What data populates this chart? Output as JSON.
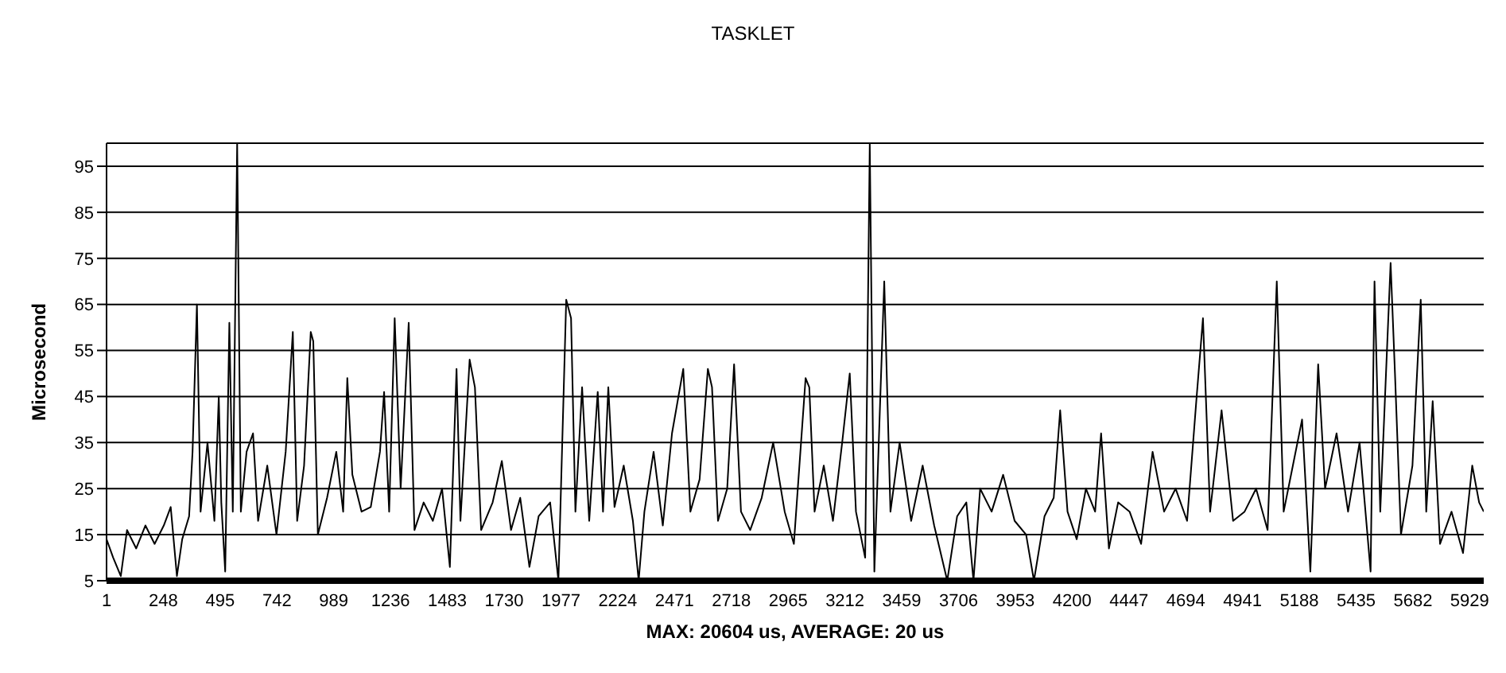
{
  "chart_data": {
    "type": "line",
    "title": "TASKLET",
    "xlabel": "MAX: 20604 us, AVERAGE: 20 us",
    "ylabel": "Microsecond",
    "x": [
      1,
      30,
      63,
      90,
      130,
      170,
      210,
      250,
      280,
      307,
      330,
      360,
      375,
      394,
      410,
      440,
      470,
      489,
      500,
      517,
      535,
      550,
      569,
      585,
      610,
      638,
      660,
      700,
      740,
      780,
      811,
      830,
      860,
      889,
      900,
      920,
      960,
      1000,
      1030,
      1048,
      1070,
      1110,
      1150,
      1190,
      1208,
      1230,
      1254,
      1280,
      1315,
      1340,
      1380,
      1420,
      1460,
      1494,
      1523,
      1540,
      1580,
      1603,
      1630,
      1680,
      1720,
      1760,
      1800,
      1840,
      1880,
      1930,
      1966,
      2000,
      2021,
      2040,
      2069,
      2100,
      2137,
      2160,
      2183,
      2210,
      2250,
      2290,
      2315,
      2340,
      2380,
      2420,
      2460,
      2509,
      2540,
      2580,
      2616,
      2634,
      2660,
      2700,
      2730,
      2760,
      2800,
      2850,
      2900,
      2950,
      2990,
      3041,
      3057,
      3080,
      3120,
      3160,
      3200,
      3233,
      3260,
      3300,
      3320,
      3340,
      3383,
      3410,
      3450,
      3500,
      3550,
      3600,
      3657,
      3700,
      3740,
      3771,
      3800,
      3850,
      3900,
      3950,
      4000,
      4034,
      4080,
      4120,
      4148,
      4180,
      4220,
      4260,
      4300,
      4326,
      4360,
      4400,
      4450,
      4500,
      4550,
      4600,
      4650,
      4700,
      4740,
      4769,
      4800,
      4850,
      4900,
      4950,
      5000,
      5050,
      5090,
      5120,
      5160,
      5200,
      5236,
      5270,
      5300,
      5350,
      5400,
      5450,
      5498,
      5515,
      5540,
      5585,
      5604,
      5630,
      5680,
      5716,
      5740,
      5768,
      5800,
      5850,
      5900,
      5940,
      5970,
      5990
    ],
    "series": [
      {
        "color": "#000000",
        "values": [
          14,
          10,
          6,
          16,
          12,
          17,
          13,
          17,
          21,
          6,
          14,
          19,
          33,
          65,
          20,
          35,
          18,
          45,
          22,
          7,
          61,
          20,
          100,
          20,
          33,
          37,
          18,
          30,
          15,
          33,
          59,
          18,
          30,
          59,
          57,
          15,
          23,
          33,
          20,
          49,
          28,
          20,
          21,
          33,
          46,
          20,
          62,
          25,
          61,
          16,
          22,
          18,
          25,
          8,
          51,
          18,
          53,
          47,
          16,
          22,
          31,
          16,
          23,
          8,
          19,
          22,
          5,
          66,
          62,
          20,
          47,
          18,
          46,
          20,
          47,
          21,
          30,
          18,
          5,
          20,
          33,
          17,
          37,
          51,
          20,
          27,
          51,
          47,
          18,
          25,
          52,
          20,
          16,
          23,
          35,
          20,
          13,
          49,
          47,
          20,
          30,
          18,
          35,
          50,
          20,
          10,
          100,
          7,
          70,
          20,
          35,
          18,
          30,
          17,
          5,
          19,
          22,
          5,
          25,
          20,
          28,
          18,
          15,
          5,
          19,
          23,
          42,
          20,
          14,
          25,
          20,
          37,
          12,
          22,
          20,
          13,
          33,
          20,
          25,
          18,
          44,
          62,
          20,
          42,
          18,
          20,
          25,
          16,
          70,
          20,
          30,
          40,
          7,
          52,
          25,
          37,
          20,
          35,
          7,
          70,
          20,
          74,
          50,
          15,
          30,
          66,
          20,
          44,
          13,
          20,
          11,
          30,
          22,
          20
        ]
      }
    ],
    "xlim": [
      1,
      5990
    ],
    "xticks": [
      1,
      248,
      495,
      742,
      989,
      1236,
      1483,
      1730,
      1977,
      2224,
      2471,
      2718,
      2965,
      3212,
      3459,
      3706,
      3953,
      4200,
      4447,
      4694,
      4941,
      5188,
      5435,
      5682,
      5929
    ],
    "ylim": [
      5,
      100
    ],
    "yticks": [
      5,
      15,
      25,
      35,
      45,
      55,
      65,
      75,
      85,
      95
    ],
    "grid": "y",
    "legend": false,
    "marker": "none",
    "line_style": "solid"
  }
}
